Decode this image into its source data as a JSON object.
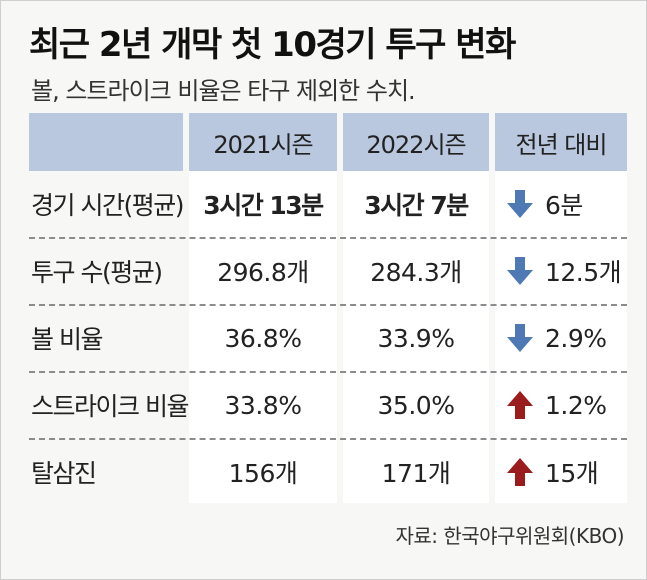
{
  "title": "최근 2년 개막 첫 10경기 투구 변화",
  "subtitle": "볼, 스트라이크 비율은 타구 제외한 수치.",
  "colors": {
    "header_bg": "#b9c7df",
    "down_arrow": "#4f79b5",
    "up_arrow": "#9b1c1c"
  },
  "table": {
    "headers": [
      "",
      "2021시즌",
      "2022시즌",
      "전년 대비"
    ],
    "rows": [
      {
        "label": "경기 시간(평균)",
        "y2021": "3시간 13분",
        "y2022": "3시간 7분",
        "change": "6분",
        "direction": "down",
        "direction_icon": "down-arrow-icon"
      },
      {
        "label": "투구 수(평균)",
        "y2021": "296.8개",
        "y2022": "284.3개",
        "change": "12.5개",
        "direction": "down",
        "direction_icon": "down-arrow-icon"
      },
      {
        "label": "볼 비율",
        "y2021": "36.8%",
        "y2022": "33.9%",
        "change": "2.9%",
        "direction": "down",
        "direction_icon": "down-arrow-icon"
      },
      {
        "label": "스트라이크 비율",
        "y2021": "33.8%",
        "y2022": "35.0%",
        "change": "1.2%",
        "direction": "up",
        "direction_icon": "up-arrow-icon"
      },
      {
        "label": "탈삼진",
        "y2021": "156개",
        "y2022": "171개",
        "change": "15개",
        "direction": "up",
        "direction_icon": "up-arrow-icon"
      }
    ]
  },
  "source": "자료: 한국야구위원회(KBO)"
}
